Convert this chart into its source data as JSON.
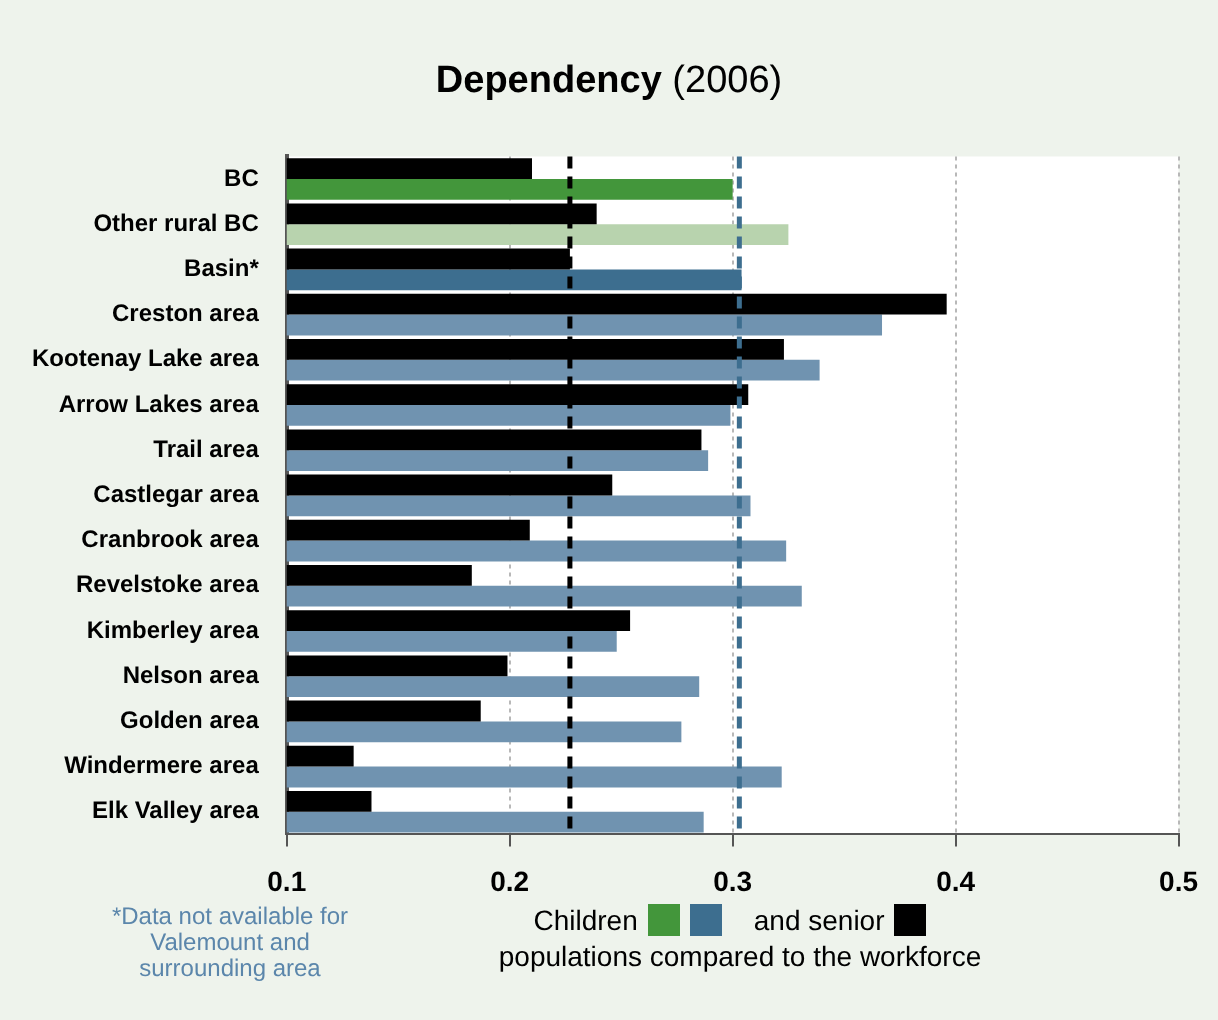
{
  "chart_data": {
    "type": "bar",
    "orientation": "horizontal",
    "title": "Dependency (2006)",
    "categories": [
      "BC",
      "Other rural BC",
      "Basin*",
      "Creston area",
      "Kootenay Lake area",
      "Arrow Lakes area",
      "Trail area",
      "Castlegar area",
      "Cranbrook area",
      "Revelstoke area",
      "Kimberley area",
      "Nelson area",
      "Golden area",
      "Windermere area",
      "Elk Valley area"
    ],
    "series": [
      {
        "name": "and senior",
        "color": "#000000",
        "values": [
          0.21,
          0.239,
          0.227,
          0.396,
          0.323,
          0.307,
          0.286,
          0.246,
          0.209,
          0.183,
          0.254,
          0.199,
          0.187,
          0.13,
          0.138
        ]
      },
      {
        "name": "Children",
        "color": "#3d6e8f",
        "colors": [
          "#43963b",
          "#b8d3ae",
          "#3d6e8f",
          "#7093b0",
          "#7093b0",
          "#7093b0",
          "#7093b0",
          "#7093b0",
          "#7093b0",
          "#7093b0",
          "#7093b0",
          "#7093b0",
          "#7093b0",
          "#7093b0",
          "#7093b0"
        ],
        "values": [
          0.3,
          0.325,
          0.304,
          0.367,
          0.339,
          0.299,
          0.289,
          0.308,
          0.324,
          0.331,
          0.248,
          0.285,
          0.277,
          0.322,
          0.287
        ]
      }
    ],
    "xlim": [
      0.1,
      0.5
    ],
    "xticks": [
      0.1,
      0.2,
      0.3,
      0.4,
      0.5
    ],
    "grid": "x",
    "legend": "bottom",
    "ref_lines": [
      {
        "axis": "x",
        "value": 0.227,
        "color": "#000000",
        "line_style": "dashed"
      },
      {
        "axis": "x",
        "value": 0.303,
        "color": "#3d6e8f",
        "line_style": "dashed"
      }
    ],
    "annotations": [
      "*Data not available for Valemount and surrounding area",
      "populations compared to the workforce"
    ]
  }
}
